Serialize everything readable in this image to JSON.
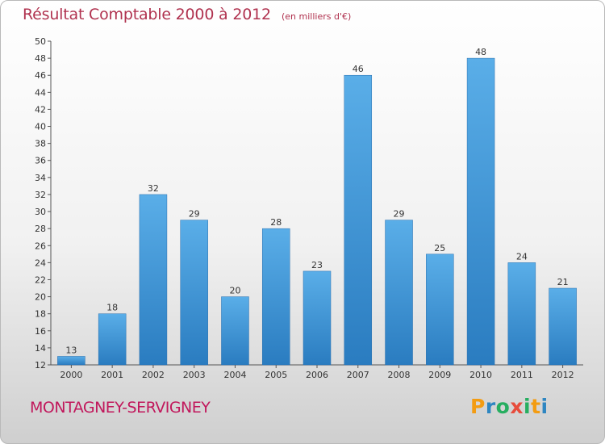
{
  "title": "Résultat Comptable 2000 à 2012",
  "subtitle": "(en milliers d'€)",
  "town": "MONTAGNEY-SERVIGNEY",
  "logo": {
    "text": "Proxiti",
    "colors": [
      "#f39c12",
      "#2e86c1",
      "#27ae60",
      "#e74c3c",
      "#27ae60",
      "#f39c12",
      "#2e86c1"
    ]
  },
  "colors": {
    "bar_top": "#5aaee8",
    "bar_bottom": "#2a7cc0",
    "title": "#b0324f",
    "town": "#c1185c"
  },
  "chart_data": {
    "type": "bar",
    "categories": [
      "2000",
      "2001",
      "2002",
      "2003",
      "2004",
      "2005",
      "2006",
      "2007",
      "2008",
      "2009",
      "2010",
      "2011",
      "2012"
    ],
    "values": [
      13,
      18,
      32,
      29,
      20,
      28,
      23,
      46,
      29,
      25,
      48,
      24,
      21
    ],
    "data_labels": [
      "13",
      "18",
      "32",
      "29",
      "20",
      "28",
      "23",
      "46",
      "29",
      "25",
      "48",
      "24",
      "21"
    ],
    "title": "Résultat Comptable 2000 à 2012",
    "xlabel": "",
    "ylabel": "",
    "ylim": [
      12,
      50
    ],
    "yticks": [
      12,
      14,
      16,
      18,
      20,
      22,
      24,
      26,
      28,
      30,
      32,
      34,
      36,
      38,
      40,
      42,
      44,
      46,
      48,
      50
    ],
    "grid": false,
    "legend": "none"
  }
}
